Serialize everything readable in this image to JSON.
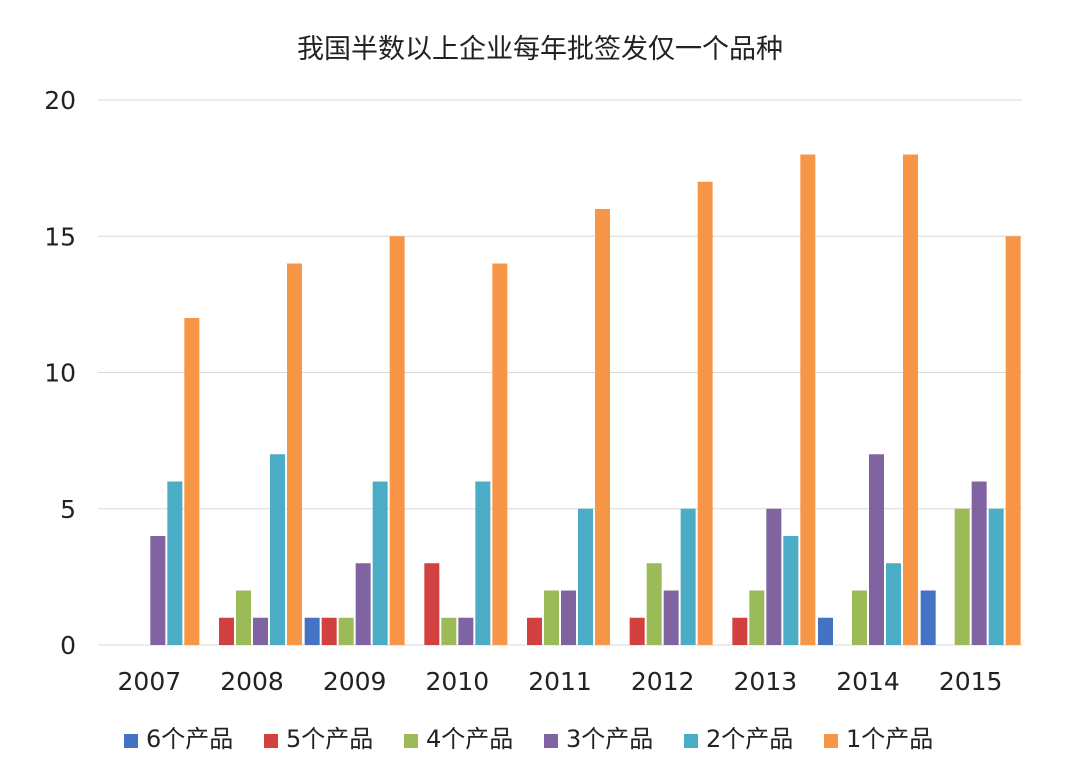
{
  "chart_data": {
    "type": "bar",
    "title": "我国半数以上企业每年批签发仅一个品种",
    "xlabel": "",
    "ylabel": "",
    "ylim": [
      0,
      20
    ],
    "yticks": [
      "0",
      "5",
      "10",
      "15",
      "20"
    ],
    "grid": true,
    "legend_position": "bottom",
    "categories": [
      "2007",
      "2008",
      "2009",
      "2010",
      "2011",
      "2012",
      "2013",
      "2014",
      "2015"
    ],
    "series": [
      {
        "name": "6个产品",
        "color": "#4472c4",
        "values": [
          0,
          0,
          1,
          0,
          0,
          0,
          0,
          1,
          2
        ]
      },
      {
        "name": "5个产品",
        "color": "#d0413f",
        "values": [
          0,
          1,
          1,
          3,
          1,
          1,
          1,
          0,
          0
        ]
      },
      {
        "name": "4个产品",
        "color": "#9bbb59",
        "values": [
          0,
          2,
          1,
          1,
          2,
          3,
          2,
          2,
          5
        ]
      },
      {
        "name": "3个产品",
        "color": "#8064a2",
        "values": [
          4,
          1,
          3,
          1,
          2,
          2,
          5,
          7,
          6
        ]
      },
      {
        "name": "2个产品",
        "color": "#4bacc6",
        "values": [
          6,
          7,
          6,
          6,
          5,
          5,
          4,
          3,
          5
        ]
      },
      {
        "name": "1个产品",
        "color": "#f79646",
        "values": [
          12,
          14,
          15,
          14,
          16,
          17,
          18,
          18,
          15
        ]
      }
    ]
  }
}
